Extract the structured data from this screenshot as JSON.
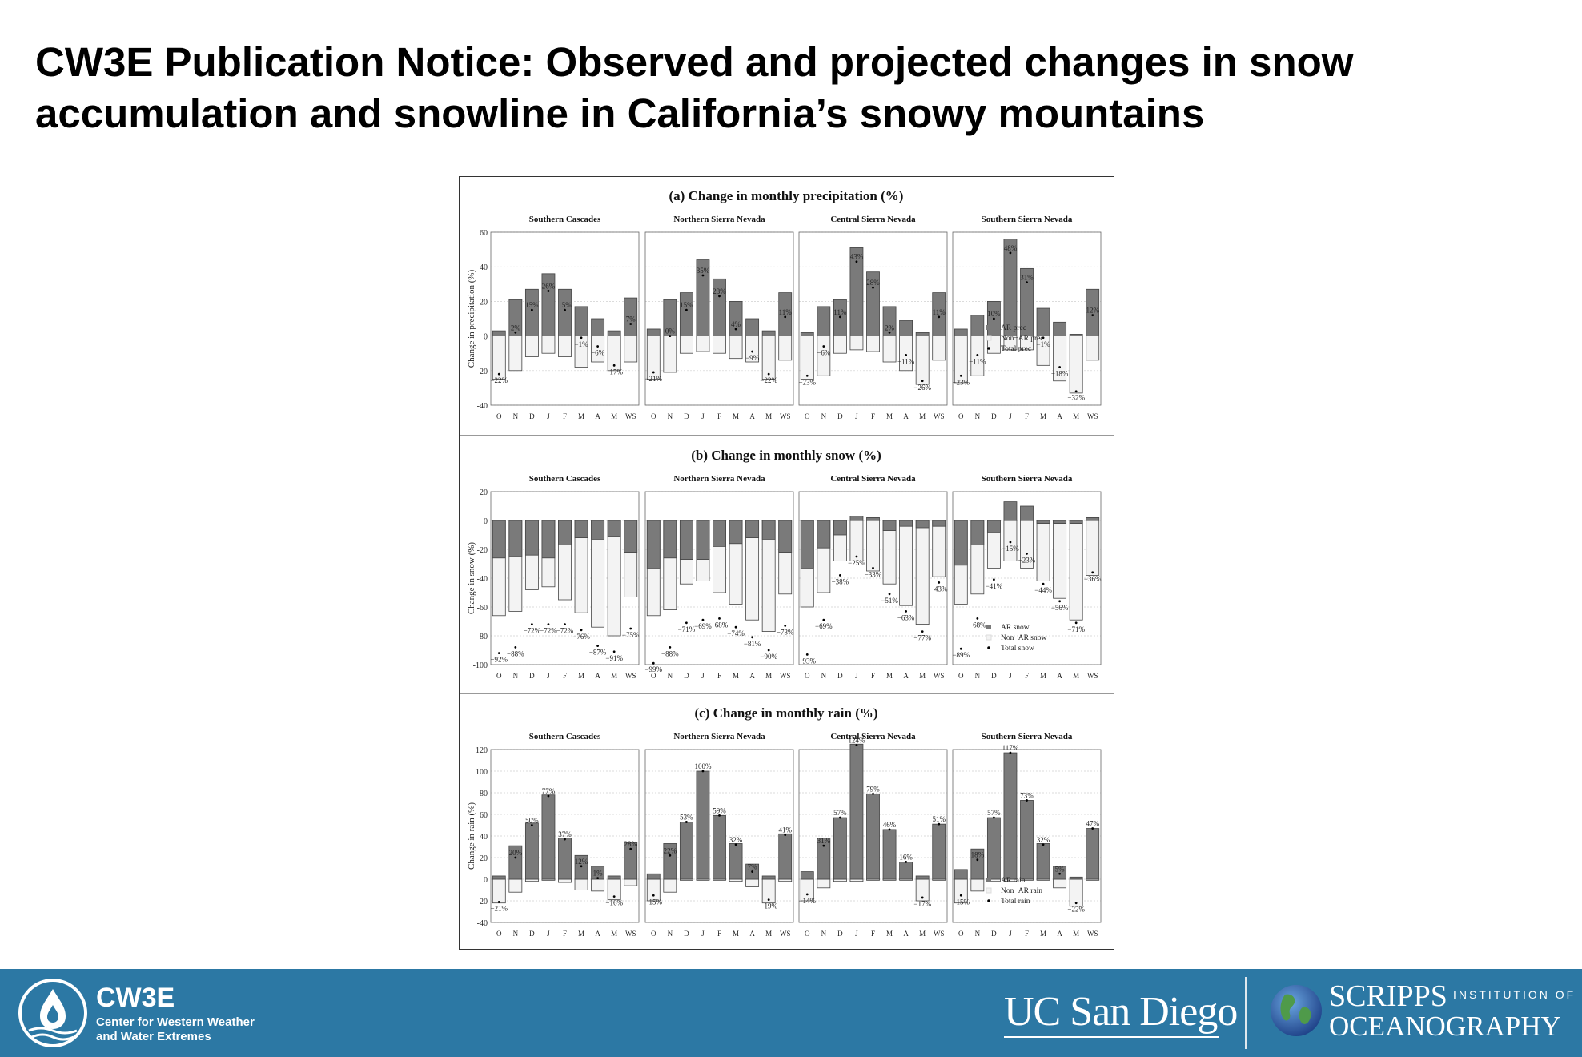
{
  "title_lines": [
    "CW3E Publication Notice: Observed and projected changes in snow",
    "accumulation and snowline in California’s snowy mountains"
  ],
  "footer": {
    "cw3e_name": "CW3E",
    "cw3e_sub1": "Center for Western Weather",
    "cw3e_sub2": "and Water Extremes",
    "ucsd": "UC San Diego",
    "scripps_name": "SCRIPPS",
    "scripps_inst": "INSTITUTION OF",
    "scripps_ocean": "OCEANOGRAPHY",
    "bg_color": "#2c78a4",
    "icons": [
      "cw3e-water-drop-icon",
      "globe-icon"
    ]
  },
  "colors": {
    "ar": "#7a7a7a",
    "non_ar": "#f3f3f3",
    "edge": "#444444",
    "dot": "#000000"
  },
  "chart_data": {
    "type": "bar",
    "months": [
      "O",
      "N",
      "D",
      "J",
      "F",
      "M",
      "A",
      "M",
      "WS"
    ],
    "regions": [
      "Southern Cascades",
      "Northern Sierra Nevada",
      "Central Sierra Nevada",
      "Southern Sierra Nevada"
    ],
    "panels": [
      {
        "title": "(a) Change in monthly precipitation (%)",
        "ylabel": "Change in precipitation (%)",
        "ylim": [
          -40,
          60
        ],
        "yticks": [
          -40,
          -20,
          0,
          20,
          40,
          60
        ],
        "legend": [
          "AR prec",
          "Non−AR prec",
          "Total prec"
        ],
        "regions": [
          {
            "ar": [
              3,
              21,
              27,
              36,
              27,
              17,
              10,
              3,
              22
            ],
            "nonar": [
              -25,
              -20,
              -12,
              -10,
              -12,
              -18,
              -15,
              -20,
              -15
            ],
            "total": [
              -22,
              2,
              15,
              26,
              15,
              -1,
              -6,
              -17,
              7
            ],
            "labels": [
              "−22%",
              "2%",
              "15%",
              "26%",
              "15%",
              "−1%",
              "−6%",
              "−17%",
              "7%"
            ]
          },
          {
            "ar": [
              4,
              21,
              25,
              44,
              33,
              20,
              10,
              3,
              25
            ],
            "nonar": [
              -25,
              -21,
              -10,
              -9,
              -10,
              -13,
              -15,
              -25,
              -14
            ],
            "total": [
              -21,
              0,
              15,
              35,
              23,
              4,
              -9,
              -22,
              11
            ],
            "labels": [
              "−21%",
              "0%",
              "15%",
              "35%",
              "23%",
              "4%",
              "−9%",
              "−22%",
              "11%"
            ]
          },
          {
            "ar": [
              2,
              17,
              21,
              51,
              37,
              17,
              9,
              2,
              25
            ],
            "nonar": [
              -25,
              -23,
              -10,
              -8,
              -9,
              -15,
              -20,
              -28,
              -14
            ],
            "total": [
              -23,
              -6,
              11,
              43,
              28,
              2,
              -11,
              -26,
              11
            ],
            "labels": [
              "−23%",
              "−6%",
              "11%",
              "43%",
              "28%",
              "2%",
              "−11%",
              "−26%",
              "11%"
            ]
          },
          {
            "ar": [
              4,
              12,
              20,
              56,
              39,
              16,
              8,
              1,
              27
            ],
            "nonar": [
              -27,
              -23,
              -10,
              -8,
              -8,
              -17,
              -26,
              -33,
              -14
            ],
            "total": [
              -23,
              -11,
              10,
              48,
              31,
              -1,
              -18,
              -32,
              12
            ],
            "labels": [
              "−23%",
              "−11%",
              "10%",
              "48%",
              "31%",
              "−1%",
              "−18%",
              "−32%",
              "12%"
            ]
          }
        ]
      },
      {
        "title": "(b) Change in monthly snow (%)",
        "ylabel": "Change in snow (%)",
        "ylim": [
          -100,
          20
        ],
        "yticks": [
          -100,
          -80,
          -60,
          -40,
          -20,
          0,
          20
        ],
        "legend": [
          "AR snow",
          "Non−AR snow",
          "Total snow"
        ],
        "regions": [
          {
            "ar": [
              -26,
              -25,
              -24,
              -26,
              -17,
              -12,
              -13,
              -11,
              -22
            ],
            "nonar": [
              -66,
              -63,
              -48,
              -46,
              -55,
              -64,
              -74,
              -80,
              -53
            ],
            "total": [
              -92,
              -88,
              -72,
              -72,
              -72,
              -76,
              -87,
              -91,
              -75
            ],
            "labels": [
              "−92%",
              "−88%",
              "−72%",
              "−72%",
              "−72%",
              "−76%",
              "−87%",
              "−91%",
              "−75%"
            ]
          },
          {
            "ar": [
              -33,
              -26,
              -27,
              -27,
              -18,
              -16,
              -12,
              -13,
              -22
            ],
            "nonar": [
              -66,
              -62,
              -44,
              -42,
              -50,
              -58,
              -69,
              -77,
              -51
            ],
            "total": [
              -99,
              -88,
              -71,
              -69,
              -68,
              -74,
              -81,
              -90,
              -73
            ],
            "labels": [
              "−99%",
              "−88%",
              "−71%",
              "−69%",
              "−68%",
              "−74%",
              "−81%",
              "−90%",
              "−73%"
            ]
          },
          {
            "ar": [
              -33,
              -19,
              -10,
              3,
              2,
              -7,
              -4,
              -5,
              -4
            ],
            "nonar": [
              -60,
              -50,
              -28,
              -28,
              -35,
              -44,
              -59,
              -72,
              -39
            ],
            "total": [
              -93,
              -69,
              -38,
              -25,
              -33,
              -51,
              -63,
              -77,
              -43
            ],
            "labels": [
              "−93%",
              "−69%",
              "−38%",
              "−25%",
              "−33%",
              "−51%",
              "−63%",
              "−77%",
              "−43%"
            ]
          },
          {
            "ar": [
              -31,
              -17,
              -8,
              13,
              10,
              -2,
              -2,
              -2,
              2
            ],
            "nonar": [
              -58,
              -51,
              -33,
              -28,
              -33,
              -42,
              -54,
              -69,
              -38
            ],
            "total": [
              -89,
              -68,
              -41,
              -15,
              -23,
              -44,
              -56,
              -71,
              -36
            ],
            "labels": [
              "−89%",
              "−68%",
              "−41%",
              "−15%",
              "−23%",
              "−44%",
              "−56%",
              "−71%",
              "−36%"
            ]
          }
        ]
      },
      {
        "title": "(c) Change in monthly rain (%)",
        "ylabel": "Change in rain (%)",
        "ylim": [
          -40,
          120
        ],
        "yticks": [
          -40,
          -20,
          0,
          20,
          40,
          60,
          80,
          100,
          120
        ],
        "legend": [
          "AR rain",
          "Non−AR rain",
          "Total rain"
        ],
        "regions": [
          {
            "ar": [
              3,
              31,
              52,
              78,
              38,
              22,
              12,
              3,
              34
            ],
            "nonar": [
              -22,
              -12,
              -2,
              -1,
              -3,
              -10,
              -11,
              -19,
              -6
            ],
            "total": [
              -21,
              20,
              50,
              77,
              37,
              12,
              1,
              -16,
              28
            ],
            "labels": [
              "−21%",
              "20%",
              "50%",
              "77%",
              "37%",
              "12%",
              "1%",
              "−16%",
              "28%"
            ]
          },
          {
            "ar": [
              5,
              33,
              53,
              100,
              59,
              33,
              14,
              3,
              42
            ],
            "nonar": [
              -20,
              -12,
              -1,
              -1,
              -1,
              -2,
              -7,
              -22,
              -2
            ],
            "total": [
              -15,
              22,
              53,
              100,
              59,
              32,
              7,
              -19,
              41
            ],
            "labels": [
              "−15%",
              "22%",
              "53%",
              "100%",
              "59%",
              "32%",
              "7%",
              "−19%",
              "41%"
            ]
          },
          {
            "ar": [
              7,
              38,
              57,
              125,
              79,
              46,
              16,
              3,
              51
            ],
            "nonar": [
              -20,
              -8,
              -2,
              -2,
              -1,
              -1,
              -1,
              -20,
              -1
            ],
            "total": [
              -14,
              31,
              57,
              124,
              79,
              46,
              16,
              -17,
              51
            ],
            "labels": [
              "−14%",
              "31%",
              "57%",
              "124%",
              "79%",
              "46%",
              "16%",
              "−17%",
              "51%"
            ]
          },
          {
            "ar": [
              9,
              28,
              57,
              117,
              73,
              33,
              12,
              2,
              47
            ],
            "nonar": [
              -22,
              -11,
              -2,
              -2,
              -1,
              -1,
              -8,
              -25,
              -1
            ],
            "total": [
              -15,
              18,
              57,
              117,
              73,
              32,
              5,
              -22,
              47
            ],
            "labels": [
              "−15%",
              "18%",
              "57%",
              "117%",
              "73%",
              "32%",
              "5%",
              "−22%",
              "47%"
            ]
          }
        ]
      }
    ]
  }
}
